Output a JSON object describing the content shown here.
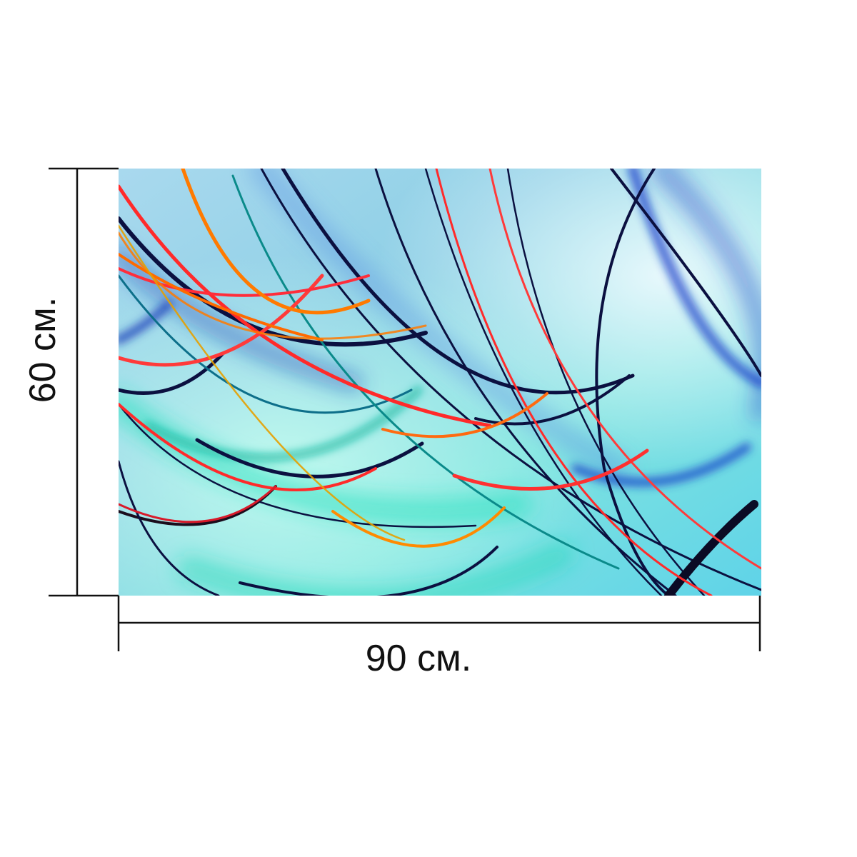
{
  "product": {
    "width_label": "90 см.",
    "height_label": "60 см."
  },
  "artwork": {
    "background_color": "#8ed6e6",
    "accent_colors": [
      "#0a0f3c",
      "#ff2a2a",
      "#ff7a00",
      "#1a3fb0",
      "#20d7b5",
      "#f2a000"
    ]
  }
}
